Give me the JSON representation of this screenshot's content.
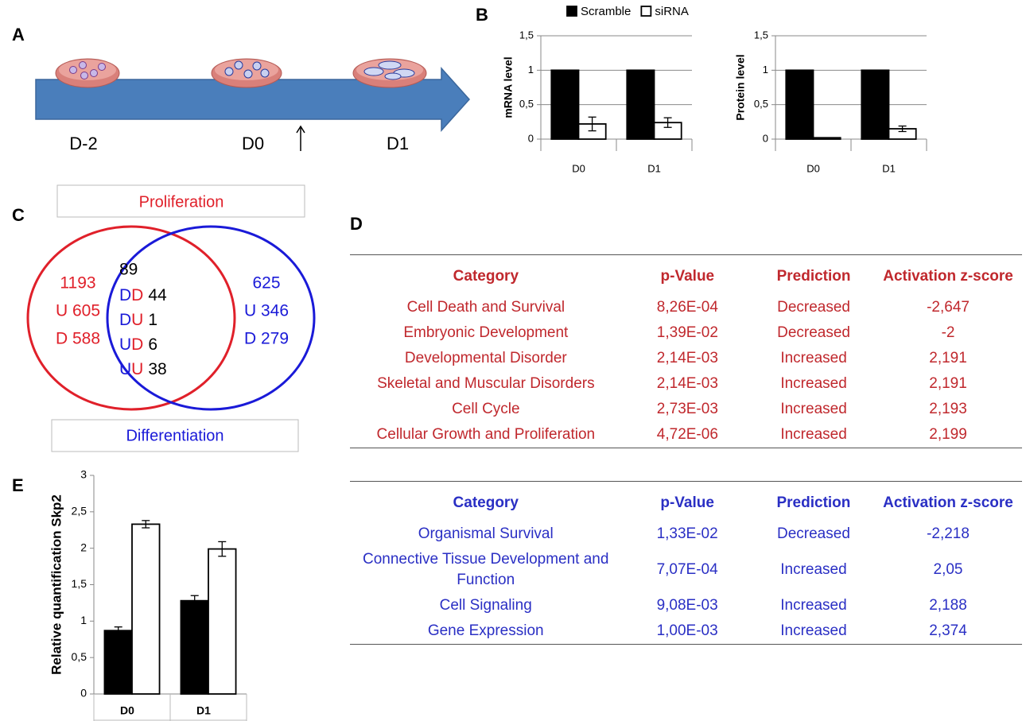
{
  "panel_labels": [
    "A",
    "B",
    "C",
    "D",
    "E"
  ],
  "timeline": {
    "labels": [
      "D-2",
      "D0",
      "D1"
    ]
  },
  "chart_data": [
    {
      "type": "bar",
      "y_label": "mRNA level",
      "categories": [
        "D0",
        "D1"
      ],
      "series": [
        {
          "name": "Scramble",
          "color": "#000000",
          "values": [
            1,
            1
          ]
        },
        {
          "name": "siRNA",
          "color": "#ffffff",
          "values": [
            0.22,
            0.24
          ],
          "errors": [
            0.1,
            0.07
          ]
        }
      ],
      "ylim": [
        0,
        1.5
      ],
      "yticks": [
        0,
        {
          "value": 0.5,
          "label": "0,5"
        },
        1,
        {
          "value": 1.5,
          "label": "1,5"
        }
      ],
      "grid": true
    },
    {
      "type": "bar",
      "y_label": "Protein level",
      "categories": [
        "D0",
        "D1"
      ],
      "series": [
        {
          "color": "#000000",
          "values": [
            1,
            1
          ]
        },
        {
          "color": "#ffffff",
          "values": [
            0.02,
            0.15
          ],
          "errors": [
            null,
            0.04
          ]
        }
      ],
      "ylim": [
        0,
        1.5
      ],
      "yticks": [
        0,
        {
          "value": 0.5,
          "label": "0,5"
        },
        1,
        {
          "value": 1.5,
          "label": "1,5"
        }
      ],
      "grid": true
    },
    {
      "type": "bar",
      "y_label": "Relative quantification Skp2",
      "categories": [
        "D0",
        "D1"
      ],
      "series": [
        {
          "color": "#000000",
          "values": [
            0.87,
            1.28
          ],
          "errors": [
            0.05,
            0.07
          ]
        },
        {
          "color": "#ffffff",
          "values": [
            2.33,
            1.99
          ],
          "errors": [
            0.05,
            0.1
          ]
        }
      ],
      "ylim": [
        0,
        3
      ],
      "yticks": [
        0,
        {
          "value": 0.5,
          "label": "0,5"
        },
        1,
        {
          "value": 1.5,
          "label": "1,5"
        },
        2,
        {
          "value": 2.5,
          "label": "2,5"
        },
        3
      ],
      "grid": false
    }
  ],
  "venn": {
    "top_label": "Proliferation",
    "bottom_label": "Differentiation",
    "left": [
      "1193",
      "U 605",
      "D 588"
    ],
    "center_total": "89",
    "center": [
      [
        "D",
        "D",
        "44"
      ],
      [
        "D",
        "U",
        "1"
      ],
      [
        "U",
        "D",
        "6"
      ],
      [
        "U",
        "U",
        "38"
      ]
    ],
    "right": [
      "625",
      "U 346",
      "D 279"
    ]
  },
  "tables": [
    {
      "header": [
        "Category",
        "p-Value",
        "Prediction",
        "Activation z-score"
      ],
      "rows": [
        [
          "Cell Death and Survival",
          "8,26E-04",
          "Decreased",
          "-2,647"
        ],
        [
          "Embryonic Development",
          "1,39E-02",
          "Decreased",
          "-2"
        ],
        [
          "Developmental Disorder",
          "2,14E-03",
          "Increased",
          "2,191"
        ],
        [
          "Skeletal and Muscular Disorders",
          "2,14E-03",
          "Increased",
          "2,191"
        ],
        [
          "Cell Cycle",
          "2,73E-03",
          "Increased",
          "2,193"
        ],
        [
          "Cellular Growth and Proliferation",
          "4,72E-06",
          "Increased",
          "2,199"
        ]
      ]
    },
    {
      "header": [
        "Category",
        "p-Value",
        "Prediction",
        "Activation z-score"
      ],
      "rows": [
        [
          "Organismal Survival",
          "1,33E-02",
          "Decreased",
          "-2,218"
        ],
        [
          "Connective Tissue Development and Function",
          "7,07E-04",
          "Increased",
          "2,05"
        ],
        [
          "Cell Signaling",
          "9,08E-03",
          "Increased",
          "2,188"
        ],
        [
          "Gene Expression",
          "1,00E-03",
          "Increased",
          "2,374"
        ]
      ]
    }
  ]
}
